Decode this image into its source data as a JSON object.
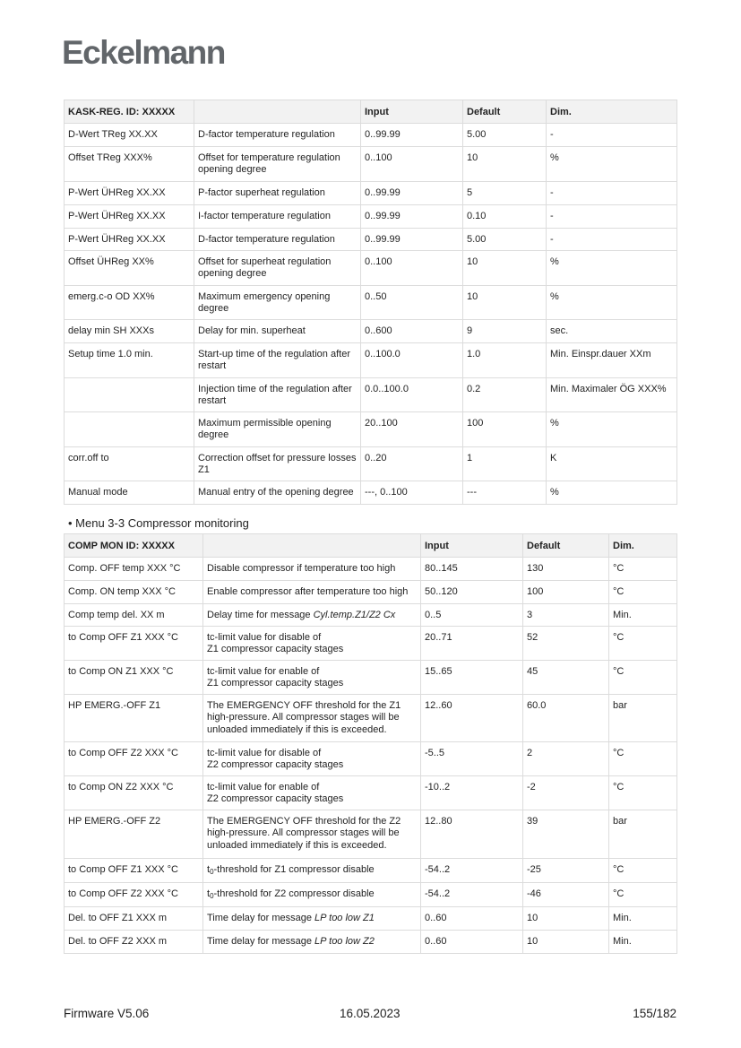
{
  "logo": "Eckelmann",
  "table1": {
    "headers": [
      "KASK-REG. ID: XXXXX",
      "",
      "Input",
      "Default",
      "Dim."
    ],
    "rows": [
      {
        "param": "D-Wert TReg XX.XX",
        "desc": "D-factor temperature regulation",
        "input": "0..99.99",
        "default": "5.00",
        "dim": "-"
      },
      {
        "param": "Offset TReg XXX%",
        "desc": "Offset for temperature regulation opening degree",
        "input": "0..100",
        "default": "10",
        "dim": "%"
      },
      {
        "param": "P-Wert ÜHReg XX.XX",
        "desc": "P-factor superheat regulation",
        "input": "0..99.99",
        "default": "5",
        "dim": "-"
      },
      {
        "param": "P-Wert ÜHReg XX.XX",
        "desc": "I-factor temperature regulation",
        "input": "0..99.99",
        "default": "0.10",
        "dim": "-"
      },
      {
        "param": "P-Wert ÜHReg XX.XX",
        "desc": "D-factor temperature regulation",
        "input": "0..99.99",
        "default": "5.00",
        "dim": "-"
      },
      {
        "param": "Offset ÜHReg XX%",
        "desc": "Offset for superheat regulation opening degree",
        "input": "0..100",
        "default": "10",
        "dim": "%"
      },
      {
        "param": "emerg.c-o OD XX%",
        "desc": "Maximum emergency opening degree",
        "input": "0..50",
        "default": "10",
        "dim": "%"
      },
      {
        "param": "delay min SH XXXs",
        "desc": "Delay for min. superheat",
        "input": "0..600",
        "default": "9",
        "dim": "sec."
      },
      {
        "param": "Setup time 1.0 min.",
        "desc": "Start-up time of the regulation after restart",
        "input": "0..100.0",
        "default": "1.0",
        "dim": "Min. Einspr.dauer XXm"
      },
      {
        "param": "",
        "desc": "Injection time of the regulation after restart",
        "input": "0.0..100.0",
        "default": "0.2",
        "dim": "Min. Maximaler ÖG XXX%"
      },
      {
        "param": "",
        "desc": "Maximum permissible opening degree",
        "input": "20..100",
        "default": "100",
        "dim": "%"
      },
      {
        "param": "corr.off to",
        "desc": "Correction offset for pressure losses Z1",
        "input": "0..20",
        "default": "1",
        "dim": "K"
      },
      {
        "param": "Manual mode",
        "desc": "Manual entry of the opening degree",
        "input": "---, 0..100",
        "default": "---",
        "dim": "%"
      }
    ]
  },
  "section_heading": "Menu 3-3 Compressor monitoring",
  "table2": {
    "headers": [
      "COMP MON ID: XXXXX",
      "",
      "Input",
      "Default",
      "Dim."
    ],
    "rows": [
      {
        "param": "Comp. OFF temp XXX °C",
        "desc": "Disable compressor if temperature too high",
        "input": "80..145",
        "default": "130",
        "dim": "°C"
      },
      {
        "param": "Comp. ON temp XXX °C",
        "desc": "Enable compressor after temperature too high",
        "input": "50..120",
        "default": "100",
        "dim": "°C"
      },
      {
        "param": "Comp temp del. XX m",
        "desc": "Delay time for message ",
        "desc_italic": "Cyl.temp.Z1/Z2 Cx",
        "input": "0..5",
        "default": "3",
        "dim": "Min."
      },
      {
        "param": "to Comp OFF Z1 XXX °C",
        "desc": "tc-limit value for disable of\nZ1 compressor capacity stages",
        "input": "20..71",
        "default": "52",
        "dim": "°C"
      },
      {
        "param": "to Comp ON Z1 XXX °C",
        "desc": "tc-limit value for enable of\nZ1 compressor capacity stages",
        "input": "15..65",
        "default": "45",
        "dim": "°C"
      },
      {
        "param": "HP EMERG.-OFF Z1",
        "desc": "The EMERGENCY OFF threshold for the Z1\nhigh-pressure. All compressor stages will be\nunloaded immediately if this is exceeded.",
        "input": "12..60",
        "default": "60.0",
        "dim": "bar"
      },
      {
        "param": "to Comp OFF Z2 XXX °C",
        "desc": "tc-limit value for disable of\nZ2 compressor capacity stages",
        "input": "-5..5",
        "default": "2",
        "dim": "°C"
      },
      {
        "param": "to Comp ON Z2 XXX °C",
        "desc": "tc-limit value for enable of\nZ2 compressor capacity stages",
        "input": "-10..2",
        "default": "-2",
        "dim": "°C"
      },
      {
        "param": "HP EMERG.-OFF Z2",
        "desc": "The EMERGENCY OFF threshold for the Z2\nhigh-pressure. All compressor stages will be\nunloaded immediately if this is exceeded.",
        "input": "12..80",
        "default": "39",
        "dim": "bar"
      },
      {
        "param": "to Comp OFF Z1 XXX °C",
        "desc_pre": "t",
        "desc_sub": "0",
        "desc": "-threshold for Z1 compressor disable",
        "input": "-54..2",
        "default": "-25",
        "dim": "°C"
      },
      {
        "param": "to Comp OFF Z2 XXX °C",
        "desc_pre": "t",
        "desc_sub": "0",
        "desc": "-threshold for Z2 compressor disable",
        "input": "-54..2",
        "default": "-46",
        "dim": "°C"
      },
      {
        "param": "Del. to OFF Z1 XXX m",
        "desc": "Time delay for message ",
        "desc_italic": "LP too low Z1",
        "input": "0..60",
        "default": "10",
        "dim": "Min."
      },
      {
        "param": "Del. to OFF Z2 XXX m",
        "desc": "Time delay for message ",
        "desc_italic": "LP too low Z2",
        "input": "0..60",
        "default": "10",
        "dim": "Min."
      }
    ]
  },
  "footer": {
    "firmware": "Firmware V5.06",
    "date": "16.05.2023",
    "page": "155/182"
  }
}
